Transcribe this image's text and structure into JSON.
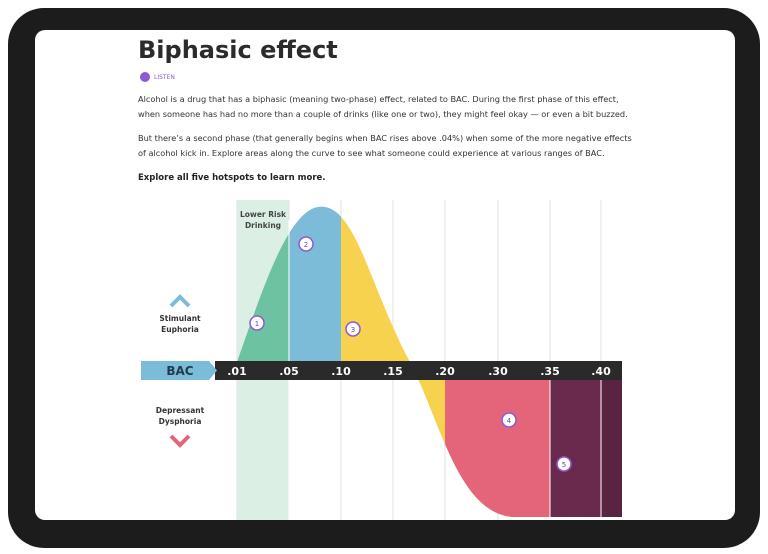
{
  "header": {
    "title": "Biphasic effect",
    "listen": "LISTEN"
  },
  "paragraphs": [
    "Alcohol is a drug that has a biphasic (meaning two-phase) effect, related to BAC. During the first phase of this effect, when someone has had no more than a couple of drinks (like one or two), they might feel okay — or even a bit buzzed.",
    "But there’s a second phase (that generally begins when BAC rises above .04%) when some of the more negative effects of alcohol kick in. Explore areas along the curve to see what someone could experience at various ranges of BAC."
  ],
  "prompt": "Explore all five hotspots to learn more.",
  "diagram": {
    "axis_label": "BAC",
    "ticks": [
      ".01",
      ".05",
      ".10",
      ".15",
      ".20",
      ".30",
      ".35",
      ".40"
    ],
    "band_label": [
      "Lower Risk",
      "Drinking"
    ],
    "upper_label": [
      "Stimulant",
      "Euphoria"
    ],
    "lower_label": [
      "Depressant",
      "Dysphoria"
    ],
    "hotspots": [
      "1",
      "2",
      "3",
      "4",
      "5"
    ]
  }
}
